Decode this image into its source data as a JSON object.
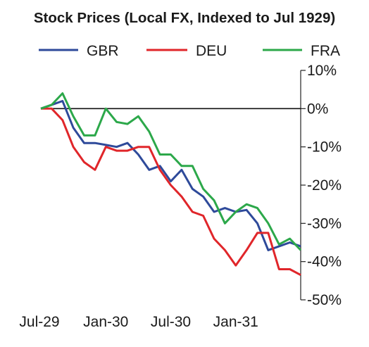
{
  "chart_data": {
    "type": "line",
    "title": "Stock Prices (Local FX, Indexed to Jul 1929)",
    "xlabel": "",
    "ylabel": "",
    "ylim": [
      -50,
      10
    ],
    "y_axis_position": "right",
    "y_ticks": [
      10,
      0,
      -10,
      -20,
      -30,
      -40,
      -50
    ],
    "y_tick_labels": [
      "10%",
      "0%",
      "-10%",
      "-20%",
      "-30%",
      "-40%",
      "-50%"
    ],
    "x": [
      "1929-07",
      "1929-08",
      "1929-09",
      "1929-10",
      "1929-11",
      "1929-12",
      "1930-01",
      "1930-02",
      "1930-03",
      "1930-04",
      "1930-05",
      "1930-06",
      "1930-07",
      "1930-08",
      "1930-09",
      "1930-10",
      "1930-11",
      "1930-12",
      "1931-01",
      "1931-02",
      "1931-03",
      "1931-04",
      "1931-05",
      "1931-06",
      "1931-07"
    ],
    "x_ticks": [
      "1929-07",
      "1930-01",
      "1930-07",
      "1931-01"
    ],
    "x_tick_labels": [
      "Jul-29",
      "Jan-30",
      "Jul-30",
      "Jan-31"
    ],
    "legend_position": "top",
    "series": [
      {
        "name": "GBR",
        "color": "#2e4a9a",
        "values": [
          0,
          1,
          2,
          -5,
          -9,
          -9,
          -9.5,
          -10,
          -9,
          -12,
          -16,
          -15,
          -19,
          -16,
          -21,
          -23,
          -27,
          -26,
          -27,
          -26.5,
          -30,
          -37,
          -36,
          -35,
          -36
        ]
      },
      {
        "name": "DEU",
        "color": "#e0262a",
        "values": [
          0,
          0,
          -3,
          -10,
          -14,
          -16,
          -10,
          -11,
          -11,
          -10,
          -10,
          -16,
          -20,
          -23,
          -27,
          -28,
          -34,
          -37,
          -41,
          -37,
          -32.5,
          -32.5,
          -42,
          -42,
          -43.5
        ]
      },
      {
        "name": "FRA",
        "color": "#2ca84a",
        "values": [
          0,
          1,
          4,
          -2,
          -7,
          -7,
          0,
          -3.5,
          -4,
          -2,
          -6,
          -12,
          -12,
          -15,
          -15,
          -21,
          -24,
          -30,
          -27,
          -25,
          -26,
          -30,
          -35.5,
          -34,
          -37
        ]
      }
    ],
    "grid": false,
    "zero_line": true
  }
}
